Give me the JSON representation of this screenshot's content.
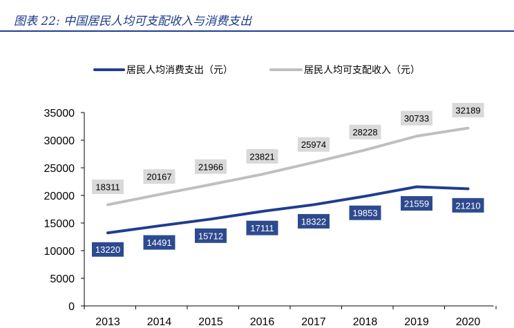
{
  "figure": {
    "title": "图表 22:  中国居民人均可支配收入与消费支出"
  },
  "chart_data": {
    "type": "line",
    "categories": [
      "2013",
      "2014",
      "2015",
      "2016",
      "2017",
      "2018",
      "2019",
      "2020"
    ],
    "series": [
      {
        "name": "居民人均消费支出（元）",
        "color": "#1f3d8f",
        "label_bg": "#2e4a8f",
        "label_color": "#ffffff",
        "values": [
          13220,
          14491,
          15712,
          17111,
          18322,
          19853,
          21559,
          21210
        ]
      },
      {
        "name": "居民人均可支配收入（元）",
        "color": "#bfbfbf",
        "label_bg": "#d9d9d9",
        "label_color": "#000000",
        "values": [
          18311,
          20167,
          21966,
          23821,
          25974,
          28228,
          30733,
          32189
        ]
      }
    ],
    "y_ticks": [
      0,
      5000,
      10000,
      15000,
      20000,
      25000,
      30000,
      35000
    ],
    "ylim": [
      0,
      35000
    ],
    "xlabel": "",
    "ylabel": "",
    "grid": false,
    "legend_position": "top"
  }
}
